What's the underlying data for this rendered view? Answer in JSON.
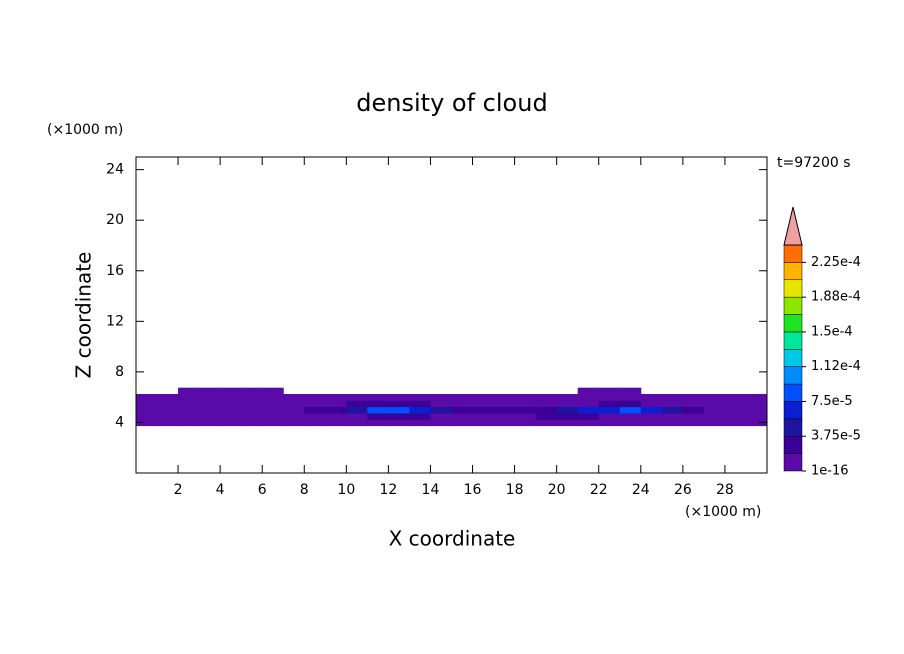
{
  "chart_data": {
    "type": "contour",
    "title": "density of cloud",
    "x_label": "X coordinate",
    "y_label": "Z coordinate",
    "x_unit": "(×1000 m)",
    "y_unit": "(×1000 m)",
    "annotation": "t=97200 s",
    "xlim": [
      0,
      30
    ],
    "ylim": [
      0,
      25
    ],
    "xticks": [
      2,
      4,
      6,
      8,
      10,
      12,
      14,
      16,
      18,
      20,
      22,
      24,
      26,
      28
    ],
    "yticks": [
      4,
      8,
      12,
      16,
      20,
      24
    ],
    "x": [
      0.5,
      1.5,
      2.5,
      3.5,
      4.5,
      5.5,
      6.5,
      7.5,
      8.5,
      9.5,
      10.5,
      11.5,
      12.5,
      13.5,
      14.5,
      15.5,
      16.5,
      17.5,
      18.5,
      19.5,
      20.5,
      21.5,
      22.5,
      23.5,
      24.5,
      25.5,
      26.5,
      27.5,
      28.5,
      29.5
    ],
    "z": [
      4,
      4.5,
      5,
      5.5,
      6,
      6.5
    ],
    "values": [
      [
        1e-06,
        1e-06,
        1e-06,
        1e-06,
        1e-06,
        1e-06,
        1e-06,
        1e-06,
        1e-06,
        1e-06,
        1e-06,
        1e-06,
        1e-06,
        1e-06,
        1e-06,
        1e-06,
        1e-06,
        1e-06,
        1e-06,
        1e-06,
        1e-06,
        1e-06,
        1e-06,
        1e-06,
        1e-06,
        1e-06,
        1e-06,
        1e-06,
        1e-06,
        1e-06
      ],
      [
        1e-06,
        1e-06,
        1e-06,
        1e-06,
        1e-06,
        1e-06,
        1e-06,
        1e-06,
        1e-06,
        1e-06,
        1e-06,
        2e-05,
        2e-05,
        2e-05,
        1e-06,
        1e-06,
        1e-06,
        1e-06,
        1e-06,
        2e-05,
        2e-05,
        2e-05,
        1e-06,
        1e-06,
        1e-06,
        1e-06,
        1e-06,
        1e-06,
        1e-06,
        1e-06
      ],
      [
        1e-06,
        1e-06,
        1e-06,
        1e-06,
        1e-06,
        1e-06,
        1e-06,
        1e-06,
        2e-05,
        3e-05,
        5e-05,
        8e-05,
        9e-05,
        6e-05,
        4e-05,
        3e-05,
        2e-05,
        2e-05,
        2e-05,
        3e-05,
        5e-05,
        6e-05,
        7e-05,
        8e-05,
        6e-05,
        4e-05,
        2e-05,
        1e-06,
        1e-06,
        1e-06
      ],
      [
        1e-06,
        1e-06,
        1e-06,
        1e-06,
        1e-06,
        1e-06,
        1e-06,
        1e-06,
        1e-06,
        1e-06,
        2e-05,
        2e-05,
        2e-05,
        2e-05,
        1e-06,
        1e-06,
        1e-06,
        1e-06,
        1e-06,
        1e-06,
        1e-06,
        1e-06,
        2e-05,
        2e-05,
        1e-06,
        1e-06,
        1e-06,
        1e-06,
        1e-06,
        1e-06
      ],
      [
        1e-06,
        1e-06,
        1e-06,
        1e-06,
        1e-06,
        1e-06,
        1e-06,
        1e-06,
        1e-06,
        1e-06,
        1e-06,
        1e-06,
        1e-06,
        1e-06,
        1e-06,
        1e-06,
        1e-06,
        1e-06,
        1e-06,
        1e-06,
        1e-06,
        1e-06,
        1e-06,
        1e-06,
        1e-06,
        1e-06,
        1e-06,
        1e-06,
        1e-06,
        1e-06
      ],
      [
        null,
        null,
        1e-06,
        1e-06,
        1e-06,
        1e-06,
        1e-06,
        null,
        null,
        null,
        null,
        null,
        null,
        null,
        null,
        null,
        null,
        null,
        null,
        null,
        null,
        1e-06,
        1e-06,
        1e-06,
        null,
        null,
        null,
        null,
        null,
        null
      ]
    ],
    "levels": [
      1e-16,
      1.875e-05,
      3.75e-05,
      5.625e-05,
      7.5e-05,
      9.375e-05,
      0.0001125,
      0.00013125,
      0.00015,
      0.00016875,
      0.0001875,
      0.00020625,
      0.000225,
      0.00024375
    ],
    "colors": [
      "#5a0aa8",
      "#3c0096",
      "#1e14a0",
      "#0a1ed2",
      "#0050ff",
      "#008cff",
      "#00c8e6",
      "#00e69b",
      "#1ee61e",
      "#8ce600",
      "#e6e600",
      "#ffb400",
      "#ff6e00",
      "#ff1e00"
    ],
    "over_color": "#f0a0a0",
    "colorbar_ticks": [
      {
        "value": 1e-16,
        "label": "1e-16"
      },
      {
        "value": 3.75e-05,
        "label": "3.75e-5"
      },
      {
        "value": 7.5e-05,
        "label": "7.5e-5"
      },
      {
        "value": 0.0001125,
        "label": "1.12e-4"
      },
      {
        "value": 0.00015,
        "label": "1.5e-4"
      },
      {
        "value": 0.0001875,
        "label": "1.88e-4"
      },
      {
        "value": 0.000225,
        "label": "2.25e-4"
      }
    ]
  }
}
